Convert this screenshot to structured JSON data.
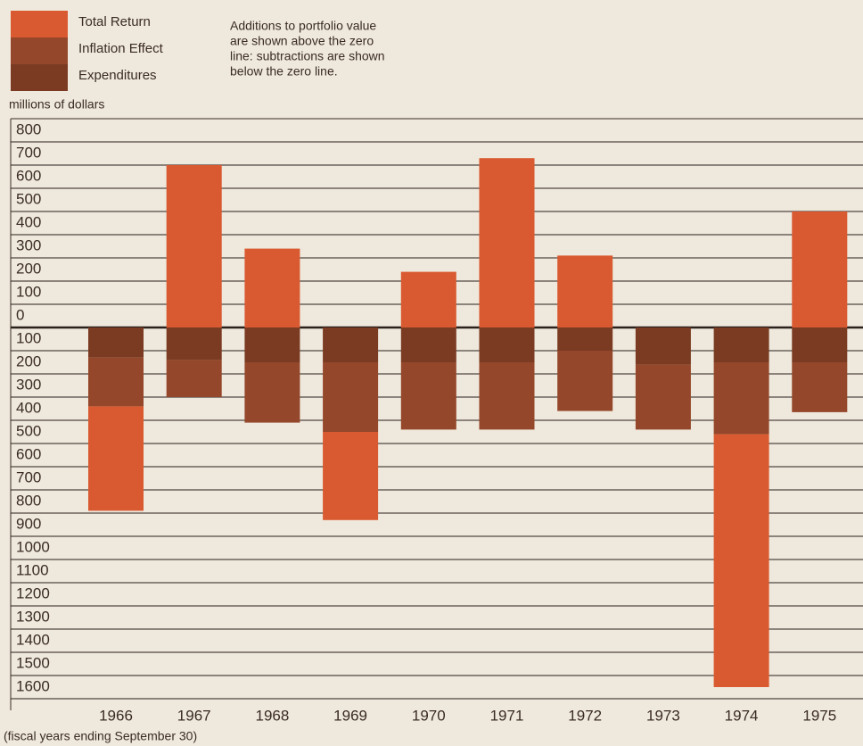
{
  "chart_data": {
    "type": "bar",
    "y_label": "millions of dollars",
    "x_label": "(fiscal years ending September 30)",
    "note": [
      "Additions to portfolio value",
      "are shown above the zero",
      "line: subtractions are shown",
      "below the zero line."
    ],
    "categories": [
      "1966",
      "1967",
      "1968",
      "1969",
      "1970",
      "1971",
      "1972",
      "1973",
      "1974",
      "1975"
    ],
    "series": [
      {
        "name": "Total Return",
        "color": "#d95a30",
        "values": [
          -450,
          700,
          340,
          -380,
          240,
          730,
          310,
          0,
          -1090,
          500
        ]
      },
      {
        "name": "Inflation Effect",
        "color": "#94472a",
        "values": [
          -210,
          -160,
          -260,
          -300,
          -290,
          -290,
          -260,
          -280,
          -310,
          -215
        ]
      },
      {
        "name": "Expenditures",
        "color": "#7a3b22",
        "values": [
          -130,
          -140,
          -150,
          -150,
          -150,
          -150,
          -100,
          -160,
          -150,
          -150
        ]
      }
    ],
    "stacked": true,
    "ylim": [
      -1650,
      900
    ],
    "yticks": [
      800,
      700,
      600,
      500,
      400,
      300,
      200,
      100,
      0,
      {
        "value": -100,
        "label": "100"
      },
      {
        "value": -200,
        "label": "200"
      },
      {
        "value": -300,
        "label": "300"
      },
      {
        "value": -400,
        "label": "400"
      },
      {
        "value": -500,
        "label": "500"
      },
      {
        "value": -600,
        "label": "600"
      },
      {
        "value": -700,
        "label": "700"
      },
      {
        "value": -800,
        "label": "800"
      },
      {
        "value": -900,
        "label": "900"
      },
      {
        "value": -1000,
        "label": "1000"
      },
      {
        "value": -1100,
        "label": "1100"
      },
      {
        "value": -1200,
        "label": "1200"
      },
      {
        "value": -1300,
        "label": "1300"
      },
      {
        "value": -1400,
        "label": "1400"
      },
      {
        "value": -1500,
        "label": "1500"
      },
      {
        "value": -1600,
        "label": "1600"
      }
    ],
    "grid": true
  }
}
